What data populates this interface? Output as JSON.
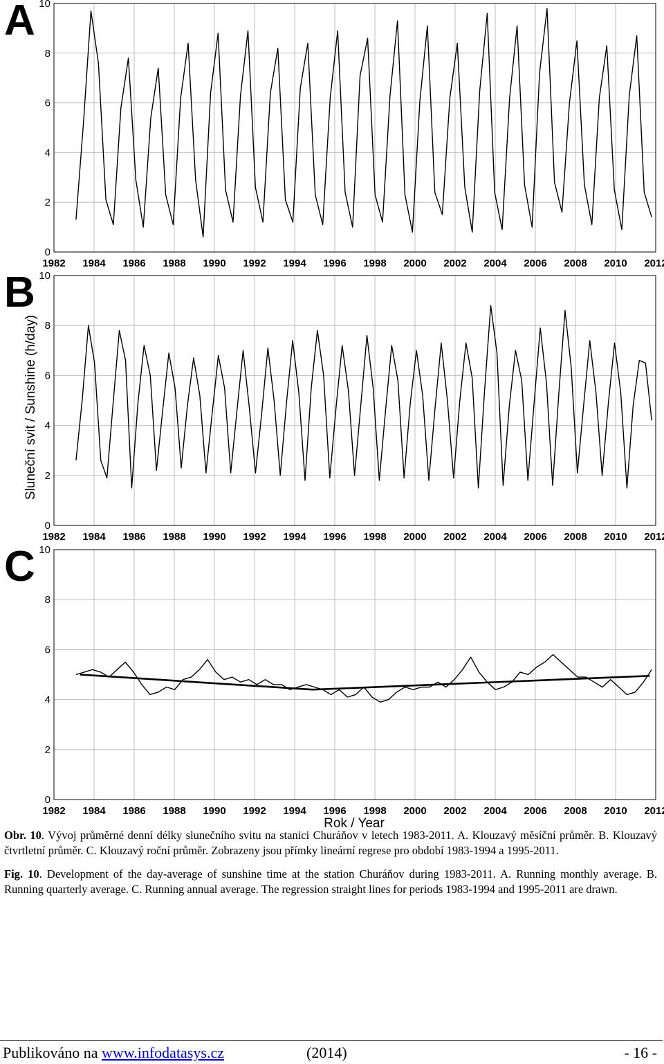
{
  "chart_data": [
    {
      "type": "line",
      "panel_label": "A",
      "xlim": [
        1982,
        2012
      ],
      "ylim": [
        0,
        10
      ],
      "x_ticks": [
        1982,
        1984,
        1986,
        1988,
        1990,
        1992,
        1994,
        1996,
        1998,
        2000,
        2002,
        2004,
        2006,
        2008,
        2010,
        2012
      ],
      "y_ticks": [
        0,
        2,
        4,
        6,
        8,
        10
      ],
      "grid": true,
      "series": [
        {
          "values": [
            1.3,
            5.2,
            9.7,
            7.6,
            2.1,
            1.1,
            5.8,
            7.8,
            2.9,
            1.0,
            5.4,
            7.4,
            2.3,
            1.1,
            6.2,
            8.4,
            2.9,
            0.6,
            6.4,
            8.8,
            2.5,
            1.2,
            6.3,
            8.9,
            2.6,
            1.2,
            6.4,
            8.2,
            2.1,
            1.2,
            6.6,
            8.4,
            2.3,
            1.1,
            6.2,
            8.9,
            2.4,
            1.0,
            7.1,
            8.6,
            2.3,
            1.2,
            6.3,
            9.3,
            2.3,
            0.8,
            6.1,
            9.1,
            2.4,
            1.5,
            6.2,
            8.4,
            2.6,
            0.8,
            6.5,
            9.6,
            2.4,
            0.9,
            6.2,
            9.1,
            2.7,
            1.0,
            7.2,
            9.8,
            2.8,
            1.6,
            6.0,
            8.5,
            2.7,
            1.1,
            6.2,
            8.3,
            2.5,
            0.9,
            6.3,
            8.7,
            2.4,
            1.4
          ]
        }
      ]
    },
    {
      "type": "line",
      "panel_label": "B",
      "xlim": [
        1982,
        2012
      ],
      "ylim": [
        0,
        10
      ],
      "x_ticks": [
        1982,
        1984,
        1986,
        1988,
        1990,
        1992,
        1994,
        1996,
        1998,
        2000,
        2002,
        2004,
        2006,
        2008,
        2010,
        2012
      ],
      "y_ticks": [
        0,
        2,
        4,
        6,
        8,
        10
      ],
      "ylabel": "Sluneční svit / Sunshine (h/day)",
      "grid": true,
      "series": [
        {
          "values": [
            2.6,
            5.0,
            8.0,
            6.5,
            2.6,
            1.9,
            4.9,
            7.8,
            6.6,
            1.5,
            4.9,
            7.2,
            6.0,
            2.2,
            4.6,
            6.9,
            5.5,
            2.3,
            4.8,
            6.7,
            5.2,
            2.1,
            4.5,
            6.8,
            5.5,
            2.1,
            4.6,
            7.0,
            4.7,
            2.1,
            4.5,
            7.1,
            5.0,
            2.0,
            4.9,
            7.4,
            5.3,
            1.8,
            5.5,
            7.8,
            6.0,
            1.9,
            4.7,
            7.2,
            5.4,
            2.0,
            4.8,
            7.6,
            5.5,
            1.8,
            4.6,
            7.2,
            5.8,
            1.9,
            4.9,
            7.0,
            5.2,
            1.8,
            4.7,
            7.3,
            5.0,
            1.9,
            5.0,
            7.3,
            5.9,
            1.5,
            5.4,
            8.8,
            6.9,
            1.6,
            4.8,
            7.0,
            5.8,
            1.8,
            4.9,
            7.9,
            5.7,
            1.6,
            5.3,
            8.6,
            6.3,
            2.1,
            4.8,
            7.4,
            5.3,
            2.0,
            4.9,
            7.3,
            5.3,
            1.5,
            4.8,
            6.6,
            6.5,
            4.2
          ]
        }
      ]
    },
    {
      "type": "line",
      "panel_label": "C",
      "xlim": [
        1982,
        2012
      ],
      "ylim": [
        0,
        10
      ],
      "x_ticks": [
        1982,
        1984,
        1986,
        1988,
        1990,
        1992,
        1994,
        1996,
        1998,
        2000,
        2002,
        2004,
        2006,
        2008,
        2010,
        2012
      ],
      "y_ticks": [
        0,
        2,
        4,
        6,
        8,
        10
      ],
      "xlabel": "Rok / Year",
      "grid": true,
      "series": [
        {
          "values": [
            5.0,
            5.1,
            5.2,
            5.1,
            4.9,
            5.2,
            5.5,
            5.1,
            4.6,
            4.2,
            4.3,
            4.5,
            4.4,
            4.8,
            4.9,
            5.2,
            5.6,
            5.1,
            4.8,
            4.9,
            4.7,
            4.8,
            4.6,
            4.8,
            4.6,
            4.6,
            4.4,
            4.5,
            4.6,
            4.5,
            4.4,
            4.2,
            4.4,
            4.1,
            4.2,
            4.5,
            4.1,
            3.9,
            4.0,
            4.3,
            4.5,
            4.4,
            4.5,
            4.5,
            4.7,
            4.5,
            4.8,
            5.2,
            5.7,
            5.1,
            4.7,
            4.4,
            4.5,
            4.7,
            5.1,
            5.0,
            5.3,
            5.5,
            5.8,
            5.5,
            5.2,
            4.9,
            4.9,
            4.7,
            4.5,
            4.8,
            4.5,
            4.2,
            4.3,
            4.7,
            5.2
          ]
        },
        {
          "name": "1983-1994",
          "kind": "trend",
          "x": [
            1983.3,
            1994.9
          ],
          "y": [
            5.0,
            4.4
          ]
        },
        {
          "name": "1995-2011",
          "kind": "trend",
          "x": [
            1994.9,
            2011.7
          ],
          "y": [
            4.4,
            4.95
          ]
        }
      ]
    }
  ],
  "caption": {
    "cz_lead": "Obr. 10",
    "cz_text": ". Vývoj průměrné denní délky slunečního svitu na stanici Churáňov v letech 1983-2011. A. Klouzavý měsíční průměr. B. Klouzavý čtvrtletní průměr. C. Klouzavý roční průměr. Zobrazeny jsou přímky lineární regrese pro období 1983-1994 a 1995-2011.",
    "en_lead": "Fig. 10",
    "en_text": ". Development of the day-average of sunshine time at the station Churáňov during 1983-2011. A. Running monthly average. B. Running quarterly average. C. Running annual average. The regression straight lines for periods 1983-1994 and 1995-2011 are drawn."
  },
  "footer": {
    "published_prefix": "Publikováno na ",
    "link_text": "www.infodatasys.cz",
    "year": "(2014)",
    "page": "- 16 -"
  }
}
